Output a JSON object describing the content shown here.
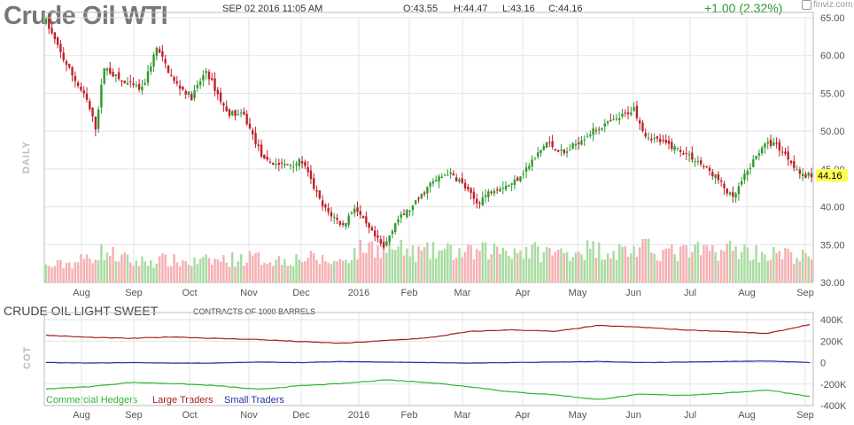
{
  "header": {
    "title": "Crude Oil WTI",
    "datetime": "SEP 02 2016 11:05 AM",
    "open": "O:43.55",
    "high": "H:44.47",
    "low": "L:43.16",
    "close": "C:44.16",
    "change": "+1.00 (2.32%)",
    "logo": "finviz.com"
  },
  "price_panel_label": "DAILY",
  "cot": {
    "title": "CRUDE OIL LIGHT SWEET",
    "unit_note": "CONTRACTS OF 1000 BARRELS",
    "panel_label": "COT",
    "legend": [
      "Commercial Hedgers",
      "Large Traders",
      "Small Traders"
    ]
  },
  "colors": {
    "up": "#2e9a2e",
    "down": "#c0202a",
    "vol_up": "#a8dca0",
    "vol_down": "#f6b0b4",
    "commercial": "#2eb52e",
    "large": "#a31e1e",
    "small": "#2232a8",
    "last_price_bg": "#ffff55"
  },
  "chart_data": [
    {
      "type": "candlestick",
      "title": "Crude Oil WTI",
      "yaxis_ticks": [
        "65.00",
        "60.00",
        "55.00",
        "50.00",
        "45.00",
        "40.00",
        "35.00",
        "30.00"
      ],
      "ylim": [
        30,
        65
      ],
      "x_labels": [
        "Aug",
        "Sep",
        "Oct",
        "Nov",
        "Dec",
        "2016",
        "Feb",
        "Mar",
        "Apr",
        "May",
        "Jun",
        "Jul",
        "Aug",
        "Sep"
      ],
      "last_price": "44.16",
      "price_path": [
        [
          0,
          64.5
        ],
        [
          6,
          59.5
        ],
        [
          14,
          54.0
        ],
        [
          17,
          50.5
        ],
        [
          20,
          58.5
        ],
        [
          26,
          56.5
        ],
        [
          33,
          55.5
        ],
        [
          38,
          61.0
        ],
        [
          44,
          56.5
        ],
        [
          50,
          54.5
        ],
        [
          55,
          58.0
        ],
        [
          62,
          52.5
        ],
        [
          68,
          52.0
        ],
        [
          75,
          46.0
        ],
        [
          82,
          45.5
        ],
        [
          88,
          46.0
        ],
        [
          95,
          40.0
        ],
        [
          102,
          37.5
        ],
        [
          106,
          40.0
        ],
        [
          110,
          37.5
        ],
        [
          116,
          34.5
        ],
        [
          120,
          38.0
        ],
        [
          126,
          40.0
        ],
        [
          132,
          43.0
        ],
        [
          138,
          44.5
        ],
        [
          142,
          43.5
        ],
        [
          148,
          40.5
        ],
        [
          154,
          42.5
        ],
        [
          160,
          43.0
        ],
        [
          166,
          45.5
        ],
        [
          172,
          48.5
        ],
        [
          178,
          47.0
        ],
        [
          184,
          49.0
        ],
        [
          190,
          50.5
        ],
        [
          196,
          51.5
        ],
        [
          202,
          53.0
        ],
        [
          206,
          49.5
        ],
        [
          212,
          48.5
        ],
        [
          218,
          47.5
        ],
        [
          224,
          46.0
        ],
        [
          230,
          44.0
        ],
        [
          236,
          41.0
        ],
        [
          240,
          44.0
        ],
        [
          246,
          48.0
        ],
        [
          250,
          48.5
        ],
        [
          255,
          46.5
        ],
        [
          260,
          44.0
        ],
        [
          263,
          44.16
        ]
      ],
      "volume_axis_label": "35.00",
      "volume_path": [
        [
          0,
          0.35
        ],
        [
          10,
          0.45
        ],
        [
          20,
          0.7
        ],
        [
          30,
          0.45
        ],
        [
          40,
          0.5
        ],
        [
          50,
          0.45
        ],
        [
          60,
          0.5
        ],
        [
          70,
          0.55
        ],
        [
          80,
          0.5
        ],
        [
          90,
          0.55
        ],
        [
          100,
          0.45
        ],
        [
          110,
          0.8
        ],
        [
          118,
          0.8
        ],
        [
          126,
          0.65
        ],
        [
          136,
          0.7
        ],
        [
          146,
          0.65
        ],
        [
          156,
          0.75
        ],
        [
          166,
          0.7
        ],
        [
          176,
          0.65
        ],
        [
          186,
          0.75
        ],
        [
          196,
          0.7
        ],
        [
          206,
          0.75
        ],
        [
          216,
          0.65
        ],
        [
          226,
          0.7
        ],
        [
          236,
          0.75
        ],
        [
          246,
          0.65
        ],
        [
          256,
          0.6
        ],
        [
          263,
          0.55
        ]
      ]
    },
    {
      "type": "line",
      "title": "CRUDE OIL LIGHT SWEET",
      "yaxis_ticks": [
        "400K",
        "200K",
        "0",
        "-200K",
        "-400K"
      ],
      "ylim": [
        -400,
        400
      ],
      "x_labels": [
        "Aug",
        "Sep",
        "Oct",
        "Nov",
        "Dec",
        "2016",
        "Feb",
        "Mar",
        "Apr",
        "May",
        "Jun",
        "Jul",
        "Aug",
        "Sep"
      ],
      "series": [
        {
          "name": "Commercial Hedgers",
          "values": [
            -245,
            -225,
            -185,
            -195,
            -215,
            -250,
            -215,
            -195,
            -160,
            -185,
            -225,
            -275,
            -300,
            -345,
            -295,
            -305,
            -285,
            -255,
            -315
          ]
        },
        {
          "name": "Large Traders",
          "values": [
            255,
            235,
            225,
            240,
            225,
            215,
            195,
            180,
            205,
            230,
            290,
            305,
            290,
            345,
            330,
            305,
            290,
            270,
            355
          ]
        },
        {
          "name": "Small Traders",
          "values": [
            0,
            -5,
            0,
            -5,
            -5,
            5,
            0,
            10,
            5,
            0,
            -5,
            0,
            5,
            10,
            0,
            5,
            10,
            15,
            0
          ]
        }
      ]
    }
  ]
}
